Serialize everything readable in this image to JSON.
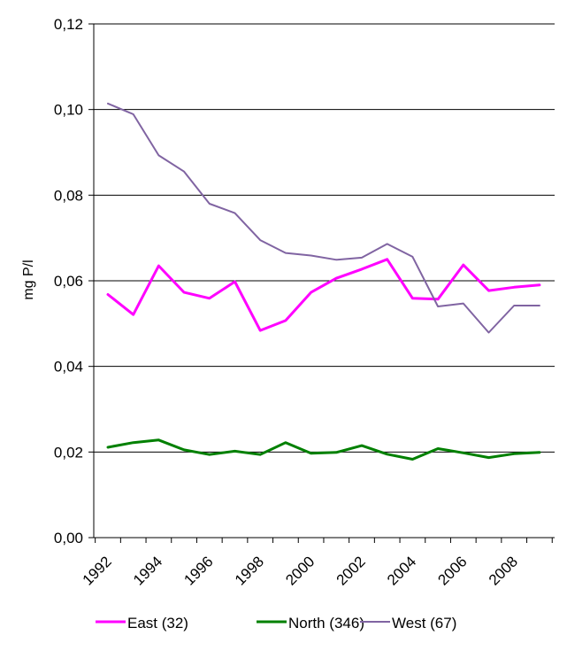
{
  "chart_data": {
    "type": "line",
    "title": "",
    "xlabel": "",
    "ylabel": "mg P/l",
    "ylim": [
      0,
      0.12
    ],
    "yticks": [
      0,
      0.02,
      0.04,
      0.06,
      0.08,
      0.1,
      0.12
    ],
    "ytick_labels": [
      "0,00",
      "0,02",
      "0,04",
      "0,06",
      "0,08",
      "0,10",
      "0,12"
    ],
    "x": [
      1992,
      1993,
      1994,
      1995,
      1996,
      1997,
      1998,
      1999,
      2000,
      2001,
      2002,
      2003,
      2004,
      2005,
      2006,
      2007,
      2008,
      2009
    ],
    "xticks": [
      1992,
      1994,
      1996,
      1998,
      2000,
      2002,
      2004,
      2006,
      2008
    ],
    "xtick_labels": [
      "1992",
      "1994",
      "1996",
      "1998",
      "2000",
      "2002",
      "2004",
      "2006",
      "2008"
    ],
    "grid": "horizontal",
    "legend_position": "bottom",
    "series": [
      {
        "name": "East (32)",
        "color": "#ff00ff",
        "values": [
          0.0568,
          0.0521,
          0.0635,
          0.0573,
          0.0559,
          0.0598,
          0.0484,
          0.0507,
          0.0573,
          0.0606,
          0.0627,
          0.065,
          0.0559,
          0.0557,
          0.0637,
          0.0577,
          0.0585,
          0.059
        ]
      },
      {
        "name": "North (346)",
        "color": "#008000",
        "values": [
          0.0211,
          0.0222,
          0.0228,
          0.0205,
          0.0194,
          0.0202,
          0.0194,
          0.0222,
          0.0197,
          0.0199,
          0.0215,
          0.0195,
          0.0183,
          0.0208,
          0.0198,
          0.0187,
          0.0196,
          0.0199
        ]
      },
      {
        "name": "West (67)",
        "color": "#8064a2",
        "values": [
          0.1014,
          0.0989,
          0.0893,
          0.0855,
          0.078,
          0.0758,
          0.0695,
          0.0665,
          0.0659,
          0.0649,
          0.0654,
          0.0686,
          0.0656,
          0.054,
          0.0547,
          0.0479,
          0.0542,
          0.0542
        ]
      }
    ]
  }
}
